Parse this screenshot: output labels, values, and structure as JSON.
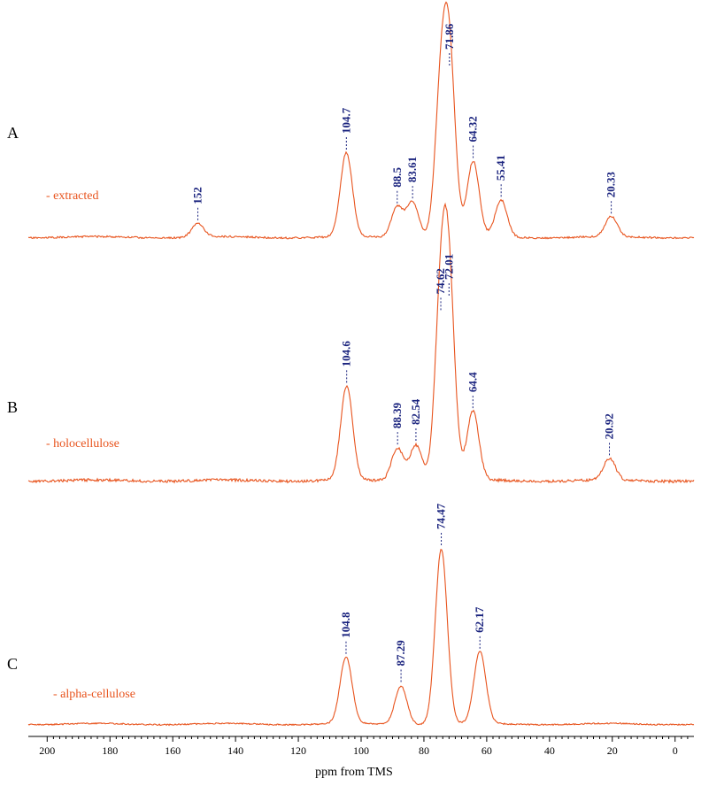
{
  "colors": {
    "spectrum": "#e8541e",
    "peak_label": "#1a237e",
    "axis": "#000000"
  },
  "chart_data": {
    "type": "line",
    "x_reversed": true,
    "xlim": [
      206,
      -6
    ],
    "xlabel": "ppm from TMS",
    "x_ticks": [
      200,
      180,
      160,
      140,
      120,
      100,
      80,
      60,
      40,
      20,
      0
    ],
    "panels": [
      {
        "letter": "A",
        "legend": "extracted",
        "peaks": [
          {
            "ppm": 152,
            "label": "152",
            "intensity": 0.08
          },
          {
            "ppm": 104.7,
            "label": "104.7",
            "intensity": 0.5
          },
          {
            "ppm": 88.5,
            "label": "88.5",
            "intensity": 0.18
          },
          {
            "ppm": 83.61,
            "label": "83.61",
            "intensity": 0.21
          },
          {
            "ppm": 74.6,
            "label": "",
            "intensity": 0.8
          },
          {
            "ppm": 71.86,
            "label": "71.86",
            "intensity": 1.0
          },
          {
            "ppm": 64.32,
            "label": "64.32",
            "intensity": 0.45
          },
          {
            "ppm": 55.41,
            "label": "55.41",
            "intensity": 0.22
          },
          {
            "ppm": 20.33,
            "label": "20.33",
            "intensity": 0.12
          }
        ]
      },
      {
        "letter": "B",
        "legend": "holocellulose",
        "peaks": [
          {
            "ppm": 104.6,
            "label": "104.6",
            "intensity": 0.52
          },
          {
            "ppm": 88.39,
            "label": "88.39",
            "intensity": 0.18
          },
          {
            "ppm": 82.54,
            "label": "82.54",
            "intensity": 0.2
          },
          {
            "ppm": 74.62,
            "label": "74.62",
            "intensity": 0.92
          },
          {
            "ppm": 72.01,
            "label": "72.01",
            "intensity": 1.0
          },
          {
            "ppm": 64.4,
            "label": "64.4",
            "intensity": 0.38
          },
          {
            "ppm": 20.92,
            "label": "20.92",
            "intensity": 0.12
          }
        ]
      },
      {
        "letter": "C",
        "legend": "alpha-cellulose",
        "peaks": [
          {
            "ppm": 104.8,
            "label": "104.8",
            "intensity": 0.38
          },
          {
            "ppm": 87.29,
            "label": "87.29",
            "intensity": 0.22
          },
          {
            "ppm": 74.47,
            "label": "74.47",
            "intensity": 1.0
          },
          {
            "ppm": 62.17,
            "label": "62.17",
            "intensity": 0.41
          }
        ]
      }
    ]
  }
}
